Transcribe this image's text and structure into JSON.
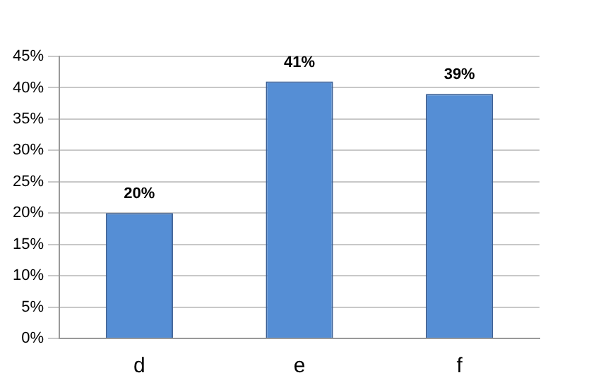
{
  "chart_data": {
    "type": "bar",
    "categories": [
      "d",
      "e",
      "f"
    ],
    "values": [
      20,
      41,
      39
    ],
    "color": "#558ed5",
    "value_labels": [
      "20%",
      "41%",
      "39%"
    ],
    "ylim": [
      0,
      45
    ],
    "yticks": [
      {
        "value": 0,
        "label": "0%"
      },
      {
        "value": 5,
        "label": "5%"
      },
      {
        "value": 10,
        "label": "10%"
      },
      {
        "value": 15,
        "label": "15%"
      },
      {
        "value": 20,
        "label": "20%"
      },
      {
        "value": 25,
        "label": "25%"
      },
      {
        "value": 30,
        "label": "30%"
      },
      {
        "value": 35,
        "label": "35%"
      },
      {
        "value": 40,
        "label": "40%"
      },
      {
        "value": 45,
        "label": "45%"
      }
    ],
    "grid": "y",
    "legend": false
  }
}
